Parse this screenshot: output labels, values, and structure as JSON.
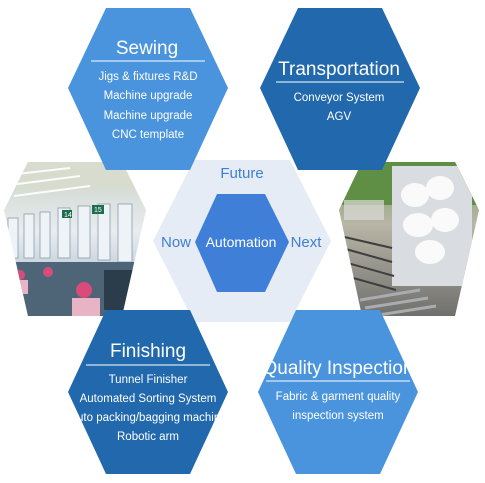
{
  "hexagons": {
    "sewing": {
      "title": "Sewing",
      "items": [
        "Jigs & fixtures R&D",
        "Machine upgrade",
        "Machine upgrade",
        "CNC template"
      ],
      "color": "#4a93dd"
    },
    "transportation": {
      "title": "Transportation",
      "items": [
        "Conveyor System",
        "AGV"
      ],
      "color": "#2168ad"
    },
    "finishing": {
      "title": "Finishing",
      "items": [
        "Tunnel Finisher",
        "Automated Sorting System",
        "Auto packing/bagging machine",
        "Robotic arm"
      ],
      "color": "#2168ad"
    },
    "quality": {
      "title": "Quality Inspection",
      "items": [
        "Fabric & garment quality",
        "inspection system"
      ],
      "color": "#4a93dd"
    }
  },
  "center": {
    "top": "Future",
    "left": "Now",
    "right": "Next",
    "main": "Automation",
    "outer_color": "#e6ecf5",
    "inner_color": "#3f7fd8"
  },
  "photos": {
    "left": "factory-floor-photo",
    "right": "roller-conveyor-photo"
  }
}
